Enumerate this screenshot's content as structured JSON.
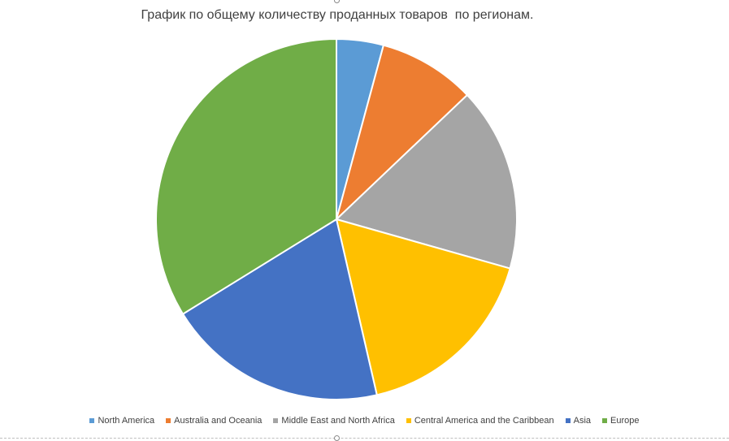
{
  "chart_data": {
    "type": "pie",
    "title": "График по общему количеству проданных товаров  по регионам.",
    "legend_position": "bottom",
    "start_angle_deg": 0,
    "direction": "clockwise",
    "categories": [
      "North America",
      "Australia and Oceania",
      "Middle East and North Africa",
      "Central America and the Caribbean",
      "Asia",
      "Europe"
    ],
    "values": [
      4.2,
      8.7,
      16.5,
      17.0,
      19.8,
      33.8
    ],
    "colors": [
      "#5b9bd5",
      "#ed7d31",
      "#a5a5a5",
      "#ffc000",
      "#4472c4",
      "#70ad47"
    ]
  }
}
